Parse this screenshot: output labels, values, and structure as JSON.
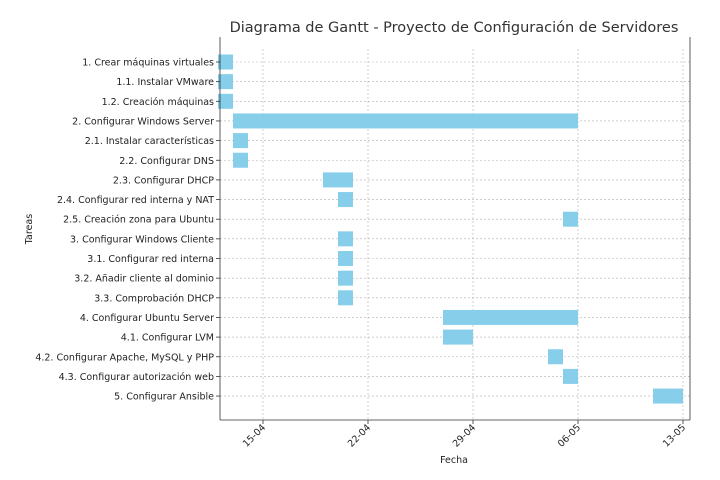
{
  "chart_data": {
    "type": "bar",
    "orientation": "horizontal",
    "title": "Diagrama de Gantt - Proyecto de Configuración de Servidores",
    "xlabel": "Fecha",
    "ylabel": "Tareas",
    "grid": true,
    "bar_color": "#87ceeb",
    "xlim": [
      "2024-04-10",
      "2024-05-13"
    ],
    "x_ticks": [
      {
        "label": "15-04",
        "date": "2024-04-15"
      },
      {
        "label": "22-04",
        "date": "2024-04-22"
      },
      {
        "label": "29-04",
        "date": "2024-04-29"
      },
      {
        "label": "06-05",
        "date": "2024-05-06"
      },
      {
        "label": "13-05",
        "date": "2024-05-13"
      }
    ],
    "tasks": [
      {
        "label": "1. Crear máquinas virtuales",
        "start": "2024-04-12",
        "end": "2024-04-13"
      },
      {
        "label": "1.1. Instalar VMware",
        "start": "2024-04-12",
        "end": "2024-04-13"
      },
      {
        "label": "1.2. Creación máquinas",
        "start": "2024-04-12",
        "end": "2024-04-13"
      },
      {
        "label": "2. Configurar Windows Server",
        "start": "2024-04-13",
        "end": "2024-05-06"
      },
      {
        "label": "2.1. Instalar características",
        "start": "2024-04-13",
        "end": "2024-04-14"
      },
      {
        "label": "2.2. Configurar DNS",
        "start": "2024-04-13",
        "end": "2024-04-14"
      },
      {
        "label": "2.3. Configurar DHCP",
        "start": "2024-04-19",
        "end": "2024-04-21"
      },
      {
        "label": "2.4. Configurar red interna y NAT",
        "start": "2024-04-20",
        "end": "2024-04-21"
      },
      {
        "label": "2.5. Creación zona para Ubuntu",
        "start": "2024-05-05",
        "end": "2024-05-06"
      },
      {
        "label": "3. Configurar Windows Cliente",
        "start": "2024-04-20",
        "end": "2024-04-21"
      },
      {
        "label": "3.1. Configurar red interna",
        "start": "2024-04-20",
        "end": "2024-04-21"
      },
      {
        "label": "3.2. Añadir cliente al dominio",
        "start": "2024-04-20",
        "end": "2024-04-21"
      },
      {
        "label": "3.3. Comprobación DHCP",
        "start": "2024-04-20",
        "end": "2024-04-21"
      },
      {
        "label": "4. Configurar Ubuntu Server",
        "start": "2024-04-27",
        "end": "2024-05-06"
      },
      {
        "label": "4.1. Configurar LVM",
        "start": "2024-04-27",
        "end": "2024-04-29"
      },
      {
        "label": "4.2. Configurar Apache, MySQL y PHP",
        "start": "2024-05-04",
        "end": "2024-05-05"
      },
      {
        "label": "4.3. Configurar autorización web",
        "start": "2024-05-05",
        "end": "2024-05-06"
      },
      {
        "label": "5. Configurar Ansible",
        "start": "2024-05-11",
        "end": "2024-05-13"
      }
    ]
  }
}
